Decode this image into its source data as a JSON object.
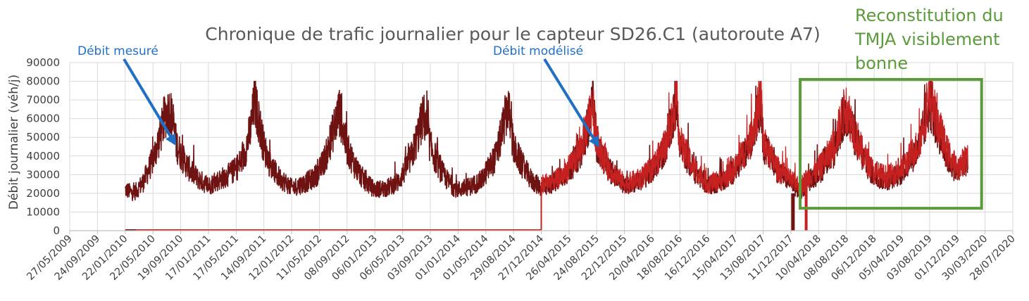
{
  "chart_data": {
    "type": "line",
    "title": "Chronique de trafic journalier pour le capteur SD26.C1 (autoroute A7)",
    "xlabel": "",
    "ylabel": "Débit journalier (véh/j)",
    "ylim": [
      0,
      90000
    ],
    "yticks": [
      0,
      10000,
      20000,
      30000,
      40000,
      50000,
      60000,
      70000,
      80000,
      90000
    ],
    "xlim": [
      "2009-05-27",
      "2020-07-28"
    ],
    "x_tick_labels": [
      "27/05/2009",
      "24/09/2009",
      "22/01/2010",
      "22/05/2010",
      "19/09/2010",
      "17/01/2011",
      "17/05/2011",
      "14/09/2011",
      "12/01/2012",
      "11/05/2012",
      "08/09/2012",
      "06/01/2013",
      "06/05/2013",
      "03/09/2013",
      "01/01/2014",
      "01/05/2014",
      "29/08/2014",
      "27/12/2014",
      "26/04/2015",
      "24/08/2015",
      "22/12/2015",
      "20/04/2016",
      "18/08/2016",
      "16/12/2016",
      "15/04/2017",
      "13/08/2017",
      "11/12/2017",
      "10/04/2018",
      "08/08/2018",
      "06/12/2018",
      "05/04/2019",
      "03/08/2019",
      "01/12/2019",
      "30/03/2020",
      "28/07/2020"
    ],
    "x_tick_dates": [
      "2009-05-27",
      "2009-09-24",
      "2010-01-22",
      "2010-05-22",
      "2010-09-19",
      "2011-01-17",
      "2011-05-17",
      "2011-09-14",
      "2012-01-12",
      "2012-05-11",
      "2012-09-08",
      "2013-01-06",
      "2013-05-06",
      "2013-09-03",
      "2014-01-01",
      "2014-05-01",
      "2014-08-29",
      "2014-12-27",
      "2015-04-26",
      "2015-08-24",
      "2015-12-22",
      "2016-04-20",
      "2016-08-18",
      "2016-12-16",
      "2017-04-15",
      "2017-08-13",
      "2017-12-11",
      "2018-04-10",
      "2018-08-08",
      "2018-12-06",
      "2019-04-05",
      "2019-08-03",
      "2019-12-01",
      "2020-03-30",
      "2020-07-28"
    ],
    "grid": true,
    "legend": "none",
    "series": [
      {
        "name": "Débit mesuré",
        "color": "#6e1212",
        "x": [
          "2010-01-22",
          "2010-03-01",
          "2010-04-10",
          "2010-05-22",
          "2010-06-20",
          "2010-07-15",
          "2010-08-05",
          "2010-09-01",
          "2010-10-01",
          "2010-11-01",
          "2010-12-01",
          "2011-01-17",
          "2011-03-01",
          "2011-04-15",
          "2011-05-17",
          "2011-06-20",
          "2011-07-20",
          "2011-08-05",
          "2011-09-14",
          "2011-10-15",
          "2011-11-15",
          "2011-12-15",
          "2012-01-12",
          "2012-03-01",
          "2012-04-15",
          "2012-05-11",
          "2012-06-15",
          "2012-07-20",
          "2012-08-05",
          "2012-09-08",
          "2012-10-15",
          "2012-11-15",
          "2012-12-15",
          "2013-01-06",
          "2013-03-01",
          "2013-04-15",
          "2013-05-06",
          "2013-06-15",
          "2013-07-20",
          "2013-08-05",
          "2013-09-03",
          "2013-10-15",
          "2013-11-15",
          "2013-12-15",
          "2014-01-01",
          "2014-03-01",
          "2014-04-15",
          "2014-05-01",
          "2014-06-15",
          "2014-07-20",
          "2014-08-05",
          "2014-08-29",
          "2014-10-15",
          "2014-11-15",
          "2014-12-27",
          "2015-03-01",
          "2015-04-26",
          "2015-06-15",
          "2015-07-20",
          "2015-08-05",
          "2015-08-24",
          "2015-10-15",
          "2015-12-22",
          "2016-03-01",
          "2016-04-20",
          "2016-06-15",
          "2016-07-20",
          "2016-08-05",
          "2016-08-18",
          "2016-10-15",
          "2016-12-16",
          "2017-03-01",
          "2017-04-15",
          "2017-06-15",
          "2017-07-20",
          "2017-08-05",
          "2017-08-13",
          "2017-10-15",
          "2017-12-11",
          "2018-01-20",
          "2018-02-20",
          "2018-04-10",
          "2018-06-15",
          "2018-07-20",
          "2018-08-08",
          "2018-10-15",
          "2018-12-06",
          "2019-02-01",
          "2019-04-05",
          "2019-06-15",
          "2019-07-20",
          "2019-08-03",
          "2019-10-15",
          "2019-12-01",
          "2020-01-15"
        ],
        "y": [
          22000,
          20000,
          26000,
          38000,
          50000,
          62000,
          65000,
          46000,
          38000,
          32000,
          28000,
          24000,
          27000,
          30000,
          33000,
          40000,
          55000,
          70000,
          45000,
          34000,
          29000,
          26000,
          23000,
          25000,
          28000,
          32000,
          42000,
          58000,
          64000,
          44000,
          34000,
          28000,
          24000,
          22000,
          23000,
          26000,
          30000,
          40000,
          55000,
          62000,
          45000,
          33000,
          27000,
          23000,
          22000,
          24000,
          27000,
          31000,
          40000,
          58000,
          67000,
          44000,
          33000,
          27000,
          23000,
          26000,
          32000,
          42000,
          58000,
          66000,
          46000,
          33000,
          24000,
          27000,
          32000,
          44000,
          60000,
          70000,
          46000,
          33000,
          24000,
          27000,
          33000,
          45000,
          62000,
          70000,
          46000,
          32000,
          26000,
          20000,
          26000,
          31000,
          42000,
          58000,
          62000,
          40000,
          29000,
          27000,
          31000,
          44000,
          60000,
          68000,
          40000,
          31000,
          38000
        ]
      },
      {
        "name": "Débit modélisé",
        "color": "#c62121",
        "x": [
          "2014-12-27",
          "2015-03-01",
          "2015-04-26",
          "2015-06-15",
          "2015-07-20",
          "2015-08-05",
          "2015-08-24",
          "2015-10-15",
          "2015-12-22",
          "2016-03-01",
          "2016-04-20",
          "2016-06-15",
          "2016-07-20",
          "2016-08-05",
          "2016-08-18",
          "2016-10-15",
          "2016-12-16",
          "2017-03-01",
          "2017-04-15",
          "2017-06-15",
          "2017-07-20",
          "2017-08-05",
          "2017-08-13",
          "2017-10-15",
          "2017-12-11",
          "2018-01-20",
          "2018-02-20",
          "2018-04-10",
          "2018-06-15",
          "2018-07-20",
          "2018-08-08",
          "2018-10-15",
          "2018-12-06",
          "2019-02-01",
          "2019-04-05",
          "2019-06-15",
          "2019-07-20",
          "2019-08-03",
          "2019-10-15",
          "2019-12-01",
          "2020-01-15"
        ],
        "y": [
          25000,
          27000,
          33000,
          44000,
          60000,
          68000,
          47000,
          34000,
          25000,
          28000,
          33000,
          46000,
          62000,
          72000,
          47000,
          34000,
          25000,
          28000,
          34000,
          47000,
          64000,
          73000,
          47000,
          33000,
          27000,
          24000,
          28000,
          33000,
          45000,
          61000,
          66000,
          42000,
          31000,
          29000,
          33000,
          46000,
          64000,
          72000,
          43000,
          33000,
          40000
        ]
      }
    ],
    "annotations": [
      {
        "text": "Débit mesuré",
        "color": "#1f6fc4",
        "points_to": {
          "x": "2010-09-19",
          "y": 48000
        }
      },
      {
        "text": "Débit modélisé",
        "color": "#1f6fc4",
        "points_to": {
          "x": "2015-08-24",
          "y": 47000
        }
      },
      {
        "text_lines": [
          "Reconstitution du",
          "TMJA visiblement",
          "bonne"
        ],
        "color": "#5b9b3b"
      }
    ],
    "highlight_box": {
      "x0": "2018-01-20",
      "x1": "2020-03-15",
      "y0": 12000,
      "y1": 81000,
      "color": "#5b9b3b"
    }
  }
}
